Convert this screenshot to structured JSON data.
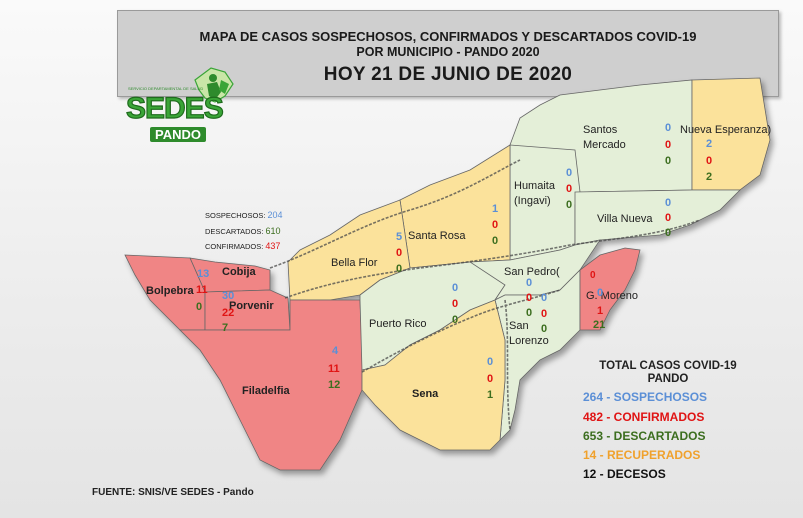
{
  "header": {
    "line1": "MAPA DE CASOS SOSPECHOSOS, CONFIRMADOS Y DESCARTADOS COVID-19",
    "line2": "POR MUNICIPIO - PANDO 2020",
    "date": "HOY  21 DE JUNIO  DE 2020"
  },
  "logo": {
    "word": "SEDES",
    "sub": "PANDO",
    "tiny": "SERVICIO DEPARTAMENTAL DE SALUD"
  },
  "colors": {
    "confirmed_zone": "#f08585",
    "mid_zone": "#fbe29b",
    "green_zone": "#e4efd8",
    "suspected": "#5b8fd6",
    "confirmed": "#e01414",
    "discarded": "#3c6e1f",
    "recovered": "#f0a12c"
  },
  "cobija_legend": {
    "suspected_label": "SOSPECHOSOS:",
    "suspected_value": "204",
    "discarded_label": "DESCARTADOS:",
    "discarded_value": "610",
    "confirmed_label": "CONFIRMADOS:",
    "confirmed_value": "437"
  },
  "municipalities": {
    "santos_mercado": {
      "name1": "Santos",
      "name2": "Mercado",
      "sus": "0",
      "conf": "0",
      "desc": "0"
    },
    "nueva_esperanza": {
      "name": "Nueva Esperanza)",
      "sus": "2",
      "conf": "0",
      "desc": "2"
    },
    "humaita": {
      "name1": "Humaita",
      "name2": "(Ingavi)",
      "sus": "0",
      "conf": "0",
      "desc": "0"
    },
    "villa_nueva": {
      "name": "Villa Nueva",
      "sus": "0",
      "conf": "0",
      "desc": "0"
    },
    "santa_rosa": {
      "name": "Santa Rosa",
      "sus": "1",
      "conf": "0",
      "desc": "0"
    },
    "bella_flor": {
      "name": "Bella Flor",
      "sus": "5",
      "conf": "0",
      "desc": "0"
    },
    "cobija": {
      "name": "Cobija",
      "sus": "13"
    },
    "bolpebra": {
      "name": "Bolpebra",
      "conf": "11",
      "desc": "0"
    },
    "porvenir": {
      "name": "Porvenir",
      "sus": "30",
      "conf": "22",
      "desc": "7"
    },
    "filadelfia": {
      "name": "Filadelfia",
      "sus": "4",
      "conf": "11",
      "desc": "12"
    },
    "puerto_rico": {
      "name": "Puerto Rico",
      "sus": "0",
      "conf": "0",
      "desc": "0"
    },
    "san_pedro": {
      "name": "San Pedro(",
      "sus": "0",
      "conf": "0",
      "desc": "0"
    },
    "san_lorenzo": {
      "name1": "San",
      "name2": "Lorenzo",
      "sus": "0",
      "conf": "0",
      "desc": "0"
    },
    "g_moreno": {
      "name": "G. Moreno",
      "sus": "0",
      "conf": "1",
      "desc": "21",
      "extra": "0"
    },
    "sena": {
      "name": "Sena",
      "sus": "0",
      "conf": "0",
      "desc": "1"
    }
  },
  "totals": {
    "title1": "TOTAL CASOS COVID-19",
    "title2": "PANDO",
    "suspected": "264  - SOSPECHOSOS",
    "confirmed": "482  - CONFIRMADOS",
    "discarded": "653  - DESCARTADOS",
    "recovered": "14   - RECUPERADOS",
    "deaths": "12     - DECESOS"
  },
  "source": "FUENTE:  SNIS/VE SEDES  - Pando"
}
